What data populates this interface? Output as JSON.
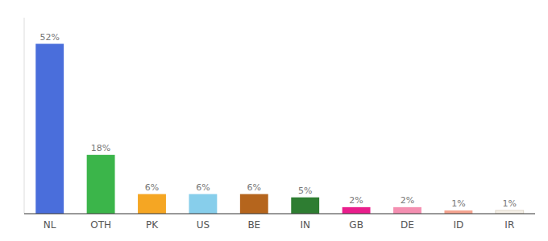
{
  "chart_data": {
    "type": "bar",
    "categories": [
      "NL",
      "OTH",
      "PK",
      "US",
      "BE",
      "IN",
      "GB",
      "DE",
      "ID",
      "IR"
    ],
    "values": [
      52,
      18,
      6,
      6,
      6,
      5,
      2,
      2,
      1,
      1
    ],
    "value_labels": [
      "52%",
      "18%",
      "6%",
      "6%",
      "6%",
      "5%",
      "2%",
      "2%",
      "1%",
      "1%"
    ],
    "colors": [
      "#4a6edb",
      "#3bb54a",
      "#f5a623",
      "#87ceeb",
      "#b5651d",
      "#2e7d32",
      "#e91e8c",
      "#f48fb1",
      "#f4a490",
      "#f5f0e8"
    ],
    "ylim": [
      0,
      60
    ],
    "data_labels": true,
    "tick_labels": "x",
    "grid": false
  }
}
